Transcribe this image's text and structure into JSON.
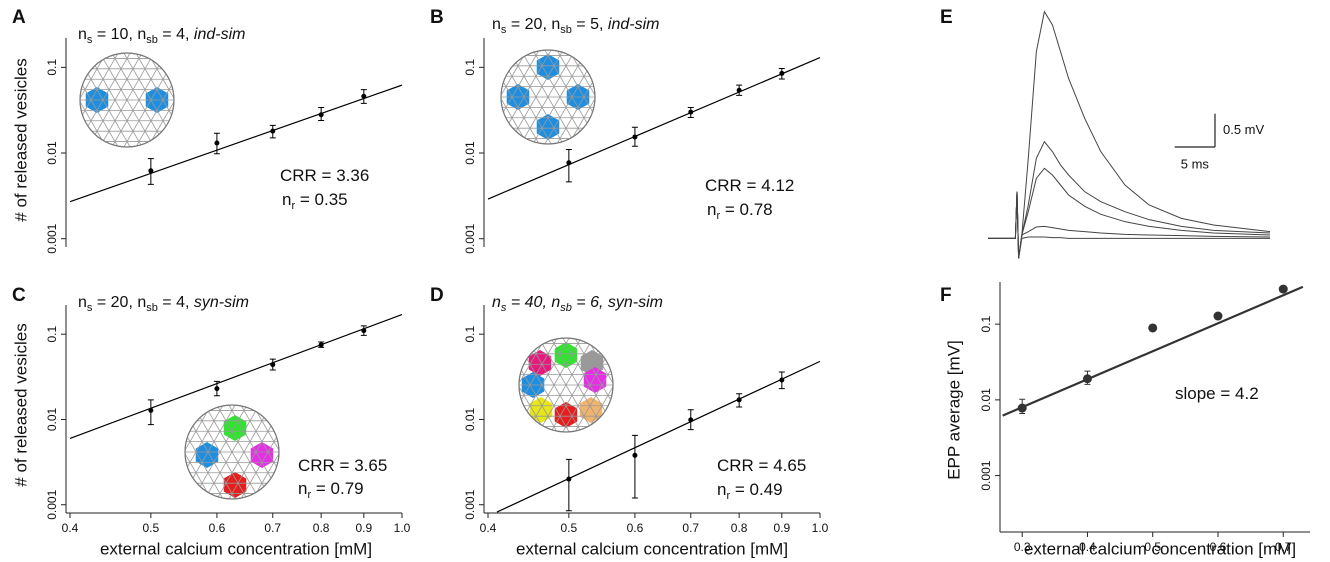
{
  "chart_data": [
    {
      "type": "scatter",
      "letter": "A",
      "xlog": true,
      "ylog": true,
      "title": [
        {
          "text": "n"
        },
        {
          "text": "s",
          "sub": true
        },
        {
          "text": " = 10, n"
        },
        {
          "text": "sb",
          "sub": true
        },
        {
          "text": " = 4, "
        },
        {
          "text": "ind-sim",
          "italic": true
        }
      ],
      "ylabel": "# of released vesicles",
      "xlim": [
        0.4,
        1.0
      ],
      "ylim": [
        0.0008,
        0.22
      ],
      "yticks": [
        0.001,
        0.01,
        0.1
      ],
      "x": [
        0.5,
        0.6,
        0.7,
        0.8,
        0.9
      ],
      "series": [
        {
          "color": "#000000",
          "values": [
            0.0062,
            0.0131,
            0.018,
            0.028,
            0.046
          ],
          "err_low": [
            0.0043,
            0.0098,
            0.015,
            0.024,
            0.038
          ],
          "err_high": [
            0.0086,
            0.017,
            0.021,
            0.034,
            0.055
          ]
        }
      ],
      "fit": {
        "x": [
          0.4,
          1.0
        ],
        "values": [
          0.0027,
          0.062
        ],
        "color": "#000000"
      },
      "annotations": [
        [
          {
            "text": "CRR = 3.36"
          }
        ],
        [
          {
            "text": "n"
          },
          {
            "text": "r",
            "sub": true
          },
          {
            "text": " = 0.35"
          }
        ]
      ]
    },
    {
      "type": "scatter",
      "letter": "B",
      "xlog": true,
      "ylog": true,
      "title": [
        {
          "text": "n"
        },
        {
          "text": "s",
          "sub": true
        },
        {
          "text": " = 20, n"
        },
        {
          "text": "sb",
          "sub": true
        },
        {
          "text": " = 5, "
        },
        {
          "text": "ind-sim",
          "italic": true
        }
      ],
      "xlim": [
        0.4,
        1.0
      ],
      "ylim": [
        0.0008,
        0.22
      ],
      "yticks": [
        0.001,
        0.01,
        0.1
      ],
      "x": [
        0.5,
        0.6,
        0.7,
        0.8,
        0.9
      ],
      "series": [
        {
          "color": "#000000",
          "values": [
            0.0077,
            0.0154,
            0.03,
            0.054,
            0.085
          ],
          "err_low": [
            0.0046,
            0.012,
            0.026,
            0.047,
            0.073
          ],
          "err_high": [
            0.011,
            0.02,
            0.034,
            0.062,
            0.097
          ]
        }
      ],
      "fit": {
        "x": [
          0.4,
          1.0
        ],
        "values": [
          0.0029,
          0.13
        ],
        "color": "#000000"
      },
      "annotations": [
        [
          {
            "text": "CRR = 4.12"
          }
        ],
        [
          {
            "text": "n"
          },
          {
            "text": "r",
            "sub": true
          },
          {
            "text": " = 0.78"
          }
        ]
      ]
    },
    {
      "type": "scatter",
      "letter": "C",
      "xlog": true,
      "ylog": true,
      "title": [
        {
          "text": "n"
        },
        {
          "text": "s",
          "sub": true
        },
        {
          "text": " = 20, n"
        },
        {
          "text": "sb",
          "sub": true
        },
        {
          "text": " = 4, "
        },
        {
          "text": "syn-sim",
          "italic": true
        }
      ],
      "ylabel": "# of released vesicles",
      "xlabel": "external calcium concentration [mM]",
      "xlim": [
        0.4,
        1.0
      ],
      "ylim": [
        0.0008,
        0.22
      ],
      "yticks": [
        0.001,
        0.01,
        0.1
      ],
      "xticks": [
        0.4,
        0.5,
        0.6,
        0.7,
        0.8,
        0.9,
        {
          "value": 1.0,
          "label": "1.0"
        }
      ],
      "x": [
        0.5,
        0.6,
        0.7,
        0.8,
        0.9
      ],
      "series": [
        {
          "color": "#000000",
          "values": [
            0.0128,
            0.023,
            0.044,
            0.075,
            0.11
          ],
          "err_low": [
            0.0087,
            0.019,
            0.038,
            0.07,
            0.097
          ],
          "err_high": [
            0.017,
            0.028,
            0.051,
            0.081,
            0.125
          ]
        }
      ],
      "fit": {
        "x": [
          0.4,
          1.0
        ],
        "values": [
          0.006,
          0.17
        ],
        "color": "#000000"
      },
      "annotations": [
        [
          {
            "text": "CRR = 3.65"
          }
        ],
        [
          {
            "text": "n"
          },
          {
            "text": "r",
            "sub": true
          },
          {
            "text": " = 0.79"
          }
        ]
      ]
    },
    {
      "type": "scatter",
      "letter": "D",
      "xlog": true,
      "ylog": true,
      "title": [
        {
          "text": "n",
          "italic": true
        },
        {
          "text": "s",
          "sub": true,
          "italic": true
        },
        {
          "text": " = 40, n",
          "italic": true
        },
        {
          "text": "sb",
          "sub": true,
          "italic": true
        },
        {
          "text": " = 6, syn-sim",
          "italic": true
        }
      ],
      "xlabel": "external calcium concentration [mM]",
      "xlim": [
        0.4,
        1.0
      ],
      "ylim": [
        0.0008,
        0.22
      ],
      "yticks": [
        0.001,
        0.01,
        0.1
      ],
      "xticks": [
        0.4,
        0.5,
        0.6,
        0.7,
        0.8,
        0.9,
        {
          "value": 1.0,
          "label": "1.0"
        }
      ],
      "x": [
        0.5,
        0.6,
        0.7,
        0.8,
        0.9
      ],
      "series": [
        {
          "color": "#000000",
          "values": [
            0.002,
            0.0038,
            0.0099,
            0.017,
            0.029
          ],
          "err_low": [
            0.00085,
            0.0012,
            0.0076,
            0.014,
            0.023
          ],
          "err_high": [
            0.0034,
            0.0065,
            0.013,
            0.02,
            0.036
          ]
        }
      ],
      "fit": {
        "x": [
          0.41,
          1.0
        ],
        "values": [
          0.00082,
          0.048
        ],
        "color": "#000000"
      },
      "annotations": [
        [
          {
            "text": "CRR = 4.65"
          }
        ],
        [
          {
            "text": "n"
          },
          {
            "text": "r",
            "sub": true
          },
          {
            "text": " = 0.49"
          }
        ]
      ]
    },
    {
      "type": "line",
      "letter": "E",
      "xlim": [
        0,
        35
      ],
      "ylim": [
        -0.1,
        3.5
      ],
      "x": [
        0,
        3.4,
        3.6,
        3.8,
        4.2,
        5,
        6,
        7,
        8,
        9,
        10,
        12,
        14,
        17,
        20,
        24,
        28,
        35
      ],
      "series": [
        {
          "color": "#444444",
          "values": [
            0,
            0,
            0.7,
            -0.3,
            0.05,
            1.2,
            2.8,
            3.4,
            3.2,
            2.8,
            2.4,
            1.8,
            1.3,
            0.8,
            0.5,
            0.3,
            0.2,
            0.1
          ]
        },
        {
          "color": "#444444",
          "values": [
            0,
            0,
            0.7,
            -0.3,
            0.05,
            0.5,
            1.2,
            1.45,
            1.3,
            1.1,
            0.95,
            0.7,
            0.55,
            0.4,
            0.28,
            0.18,
            0.12,
            0.08
          ]
        },
        {
          "color": "#444444",
          "values": [
            0,
            0,
            0.7,
            -0.3,
            0.05,
            0.4,
            0.9,
            1.05,
            0.95,
            0.8,
            0.65,
            0.48,
            0.36,
            0.25,
            0.18,
            0.12,
            0.08,
            0.05
          ]
        },
        {
          "color": "#444444",
          "values": [
            0,
            0,
            0.7,
            -0.3,
            0.05,
            0.1,
            0.17,
            0.18,
            0.16,
            0.14,
            0.12,
            0.1,
            0.08,
            0.06,
            0.05,
            0.04,
            0.03,
            0.02
          ]
        },
        {
          "color": "#444444",
          "values": [
            0,
            0,
            0.7,
            -0.3,
            0,
            0.02,
            0.02,
            0.02,
            0.01,
            0.01,
            0,
            0,
            0,
            0,
            0,
            0,
            0,
            0
          ]
        }
      ],
      "scalebar": {
        "x": {
          "value": 5,
          "label": "5 ms"
        },
        "y": {
          "value": 0.5,
          "label": "0.5 mV"
        }
      }
    },
    {
      "type": "scatter",
      "letter": "F",
      "xlog": false,
      "ylog": true,
      "ylabel": "EPP average [mV]",
      "xlabel": "external calcium concentration [mM]",
      "xlim": [
        0.266,
        0.741
      ],
      "ylim": [
        0.00018,
        0.36
      ],
      "yticks": [
        0.001,
        0.01,
        0.1
      ],
      "xticks": [
        0.3,
        0.4,
        0.5,
        0.6,
        0.7
      ],
      "x": [
        0.3,
        0.4,
        0.5,
        0.6,
        0.7
      ],
      "series": [
        {
          "color": "#333333",
          "values": [
            0.0078,
            0.019,
            0.089,
            0.128,
            0.29
          ],
          "err_low": [
            0.0066,
            0.016,
            0.082,
            0.12,
            0.27
          ],
          "err_high": [
            0.0102,
            0.024,
            0.096,
            0.136,
            0.31
          ]
        }
      ],
      "fit": {
        "x": [
          0.27,
          0.73
        ],
        "values": [
          0.0062,
          0.31
        ],
        "color": "#333333"
      },
      "annotations": [
        [
          {
            "text": "slope = 4.2"
          }
        ]
      ]
    }
  ]
}
